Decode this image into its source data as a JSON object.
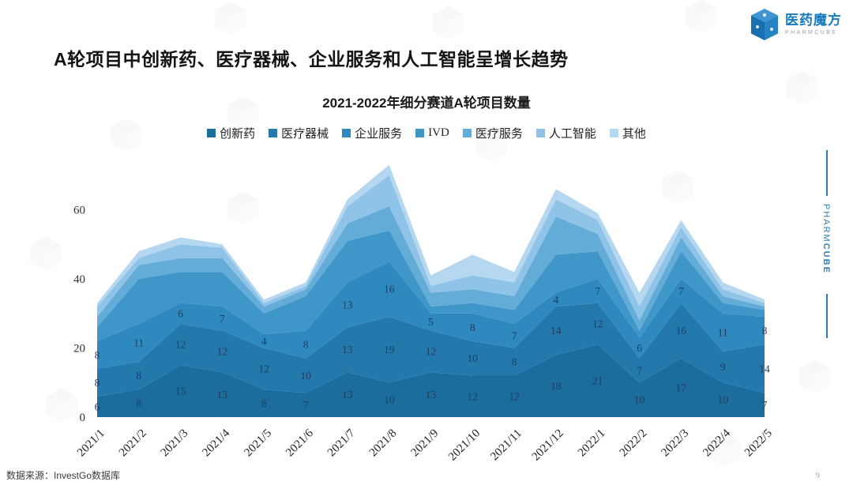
{
  "page": {
    "title": "A轮项目中创新药、医疗器械、企业服务和人工智能呈增长趋势",
    "source_note": "数据来源：InvestGo数据库",
    "page_number": "9"
  },
  "logo": {
    "name_cn": "医药魔方",
    "name_en": "PHARMCUBE"
  },
  "side_brand": {
    "text_regular": "PHARM",
    "text_bold": "CUBE"
  },
  "chart_data": {
    "type": "area",
    "stacked": true,
    "title": "2021-2022年细分赛道A轮项目数量",
    "x": [
      "2021/1",
      "2021/2",
      "2021/3",
      "2021/4",
      "2021/5",
      "2021/6",
      "2021/7",
      "2021/8",
      "2021/9",
      "2021/10",
      "2021/11",
      "2021/12",
      "2022/1",
      "2022/2",
      "2022/3",
      "2022/4",
      "2022/5"
    ],
    "yticks": [
      0,
      20,
      40,
      60
    ],
    "ylim": [
      0,
      80
    ],
    "grid": false,
    "legend_position": "top",
    "label_color": "#223C5F",
    "series": [
      {
        "name": "创新药",
        "color": "#1B6D9E",
        "labels_shown": true,
        "values": [
          6,
          8,
          15,
          13,
          8,
          7,
          13,
          10,
          13,
          12,
          12,
          18,
          21,
          10,
          17,
          10,
          7
        ]
      },
      {
        "name": "医疗器械",
        "color": "#2379AC",
        "labels_shown": true,
        "values": [
          8,
          8,
          12,
          12,
          12,
          10,
          13,
          19,
          12,
          10,
          8,
          14,
          12,
          7,
          16,
          9,
          14
        ]
      },
      {
        "name": "企业服务",
        "color": "#2E89BE",
        "labels_shown": true,
        "values": [
          8,
          11,
          6,
          7,
          4,
          8,
          13,
          16,
          5,
          8,
          7,
          4,
          7,
          6,
          7,
          11,
          8
        ]
      },
      {
        "name": "IVD",
        "color": "#3F97C9",
        "labels_shown": false,
        "values": [
          4,
          13,
          9,
          10,
          6,
          10,
          12,
          9,
          2,
          3,
          4,
          11,
          8,
          2,
          8,
          3,
          2
        ]
      },
      {
        "name": "医疗服务",
        "color": "#63ACD8",
        "labels_shown": false,
        "values": [
          3,
          4,
          4,
          4,
          2,
          2,
          5,
          7,
          4,
          4,
          4,
          11,
          5,
          3,
          4,
          2,
          1
        ]
      },
      {
        "name": "人工智能",
        "color": "#8FC3E7",
        "labels_shown": false,
        "values": [
          3,
          2,
          4,
          3,
          1,
          1,
          5,
          9,
          2,
          4,
          4,
          5,
          4,
          4,
          3,
          2,
          1
        ]
      },
      {
        "name": "其他",
        "color": "#B5D8F0",
        "labels_shown": false,
        "values": [
          1,
          2,
          2,
          1,
          1,
          1,
          2,
          3,
          3,
          6,
          3,
          3,
          2,
          4,
          2,
          2,
          1
        ]
      }
    ],
    "note": "values for IVD/医疗服务/人工智能/其他 estimated from band heights (no printed labels)"
  }
}
